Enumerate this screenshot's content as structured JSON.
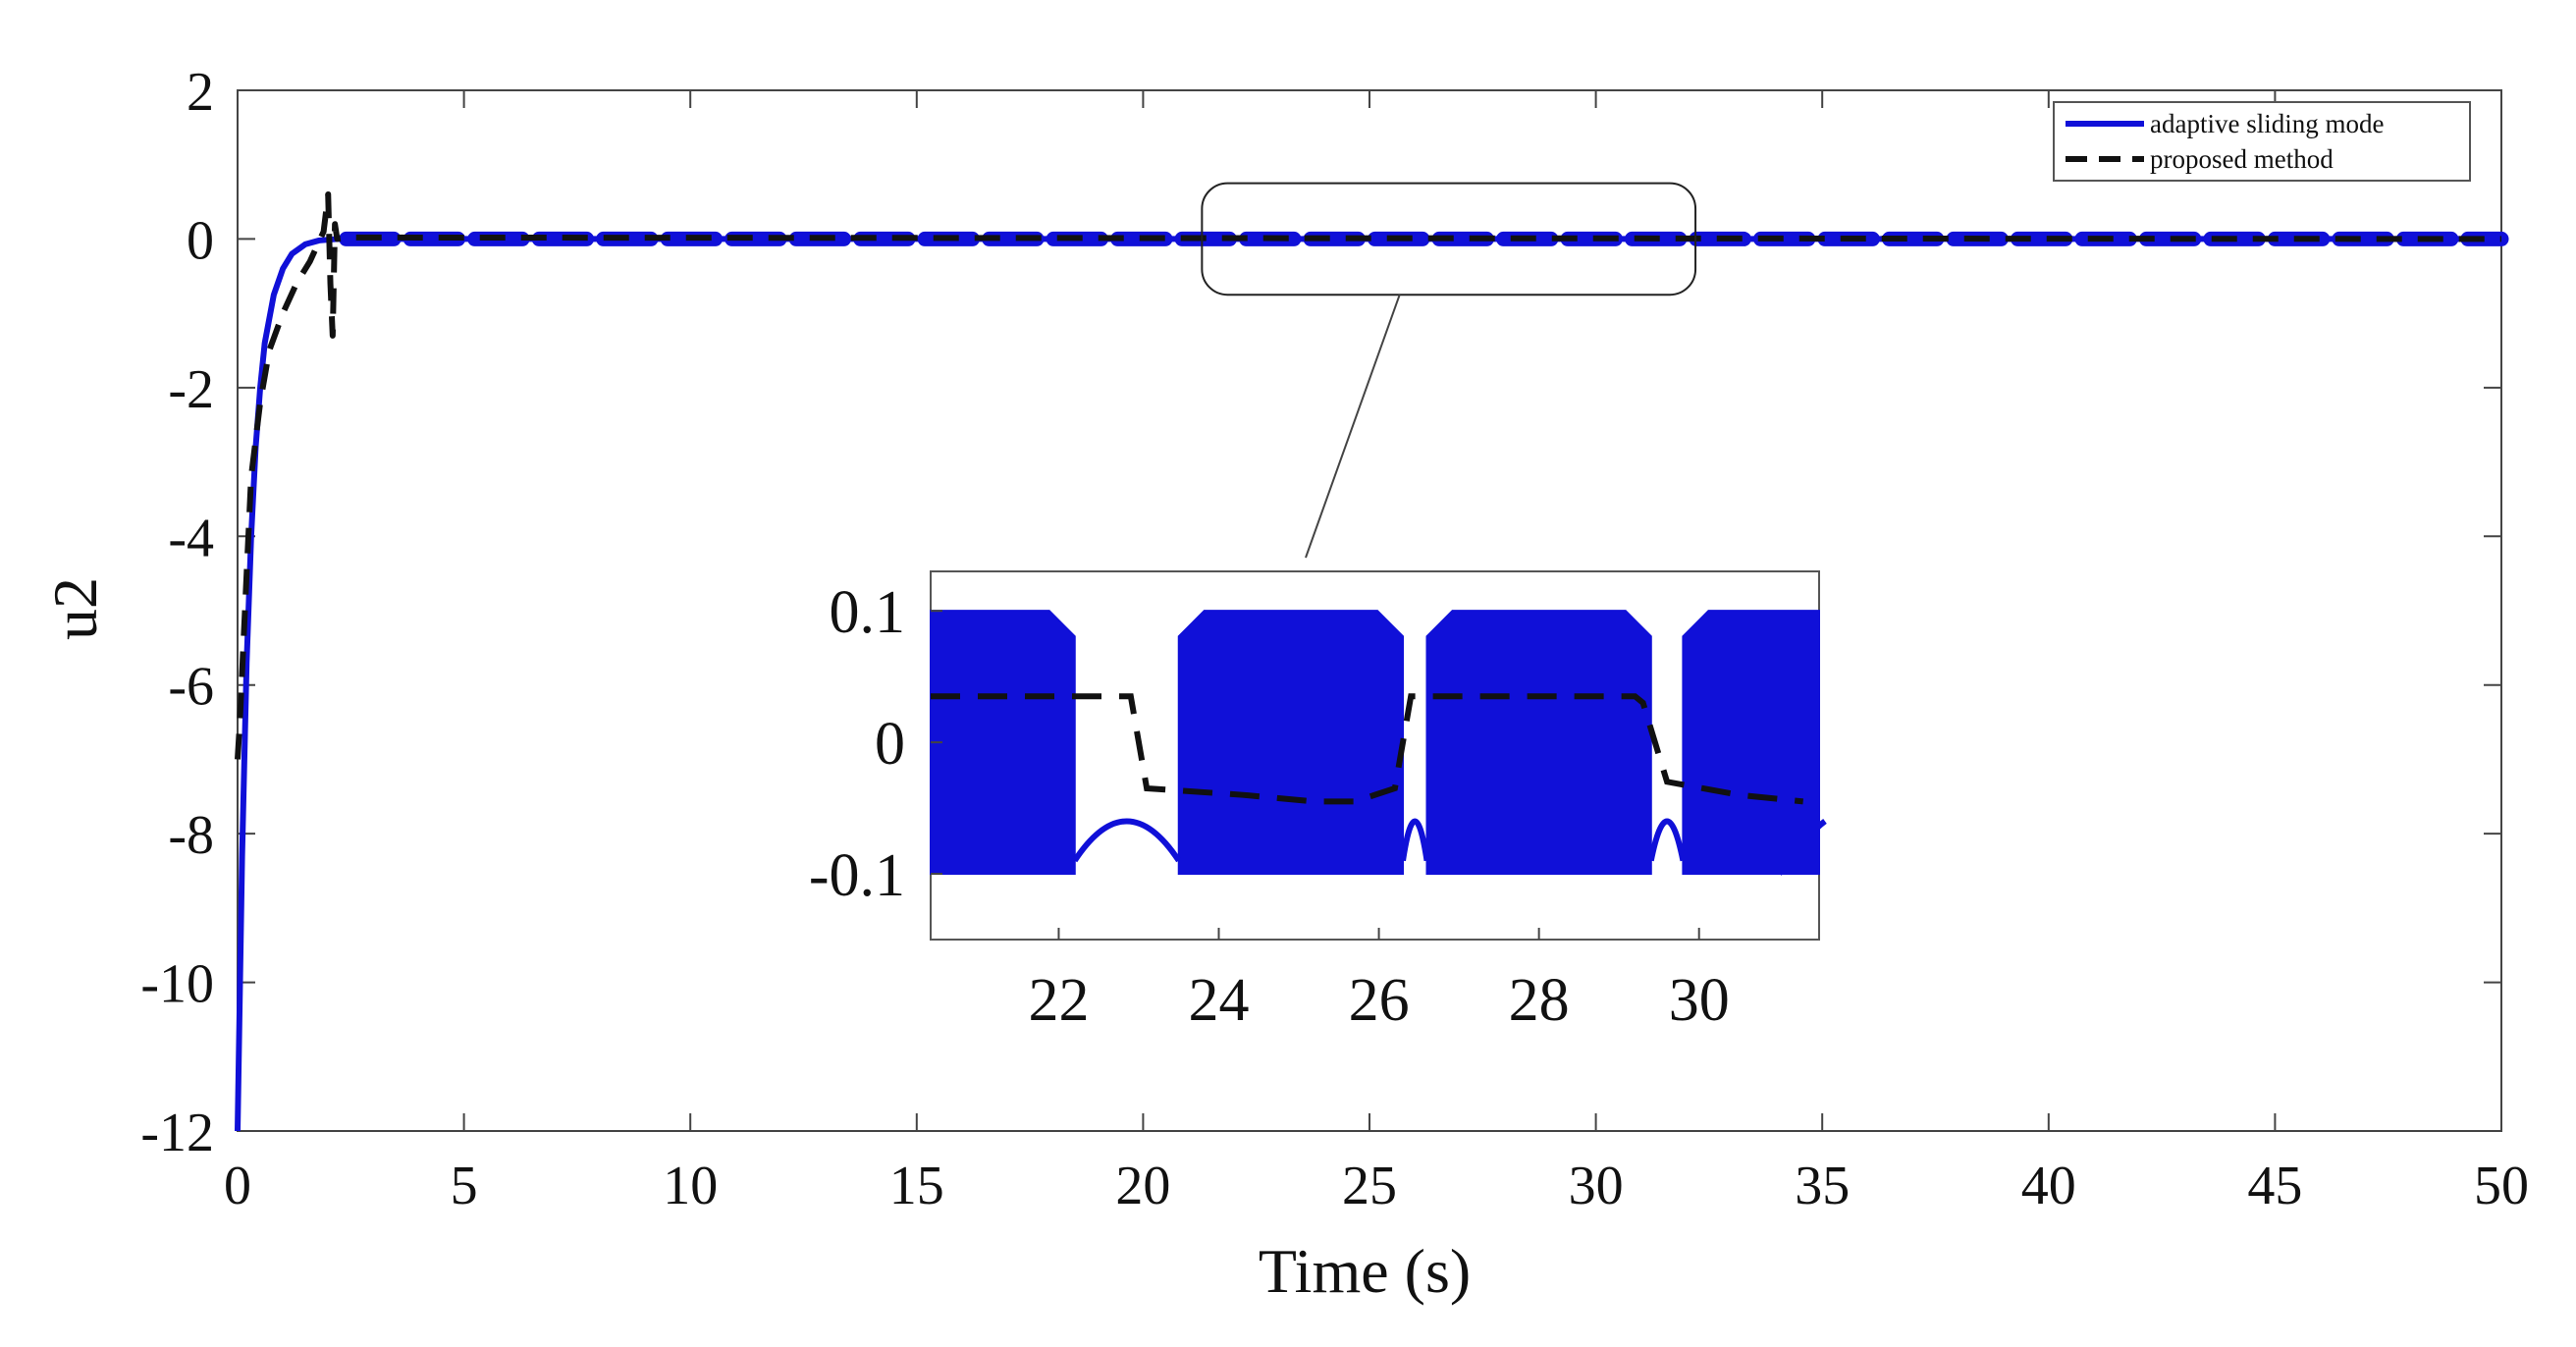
{
  "chart_data": {
    "type": "line",
    "xlabel": "Time (s)",
    "ylabel": "u2",
    "xlim": [
      0,
      50
    ],
    "ylim": [
      -12,
      2
    ],
    "xticks": [
      0,
      5,
      10,
      15,
      20,
      25,
      30,
      35,
      40,
      45,
      50
    ],
    "yticks": [
      2,
      0,
      -2,
      -4,
      -6,
      -8,
      -10,
      -12
    ],
    "grid": false,
    "legend_position": "top-right",
    "series": [
      {
        "name": "adaptive sliding mode",
        "color": "#1010d8",
        "style": "solid",
        "x": [
          0,
          0.1,
          0.2,
          0.3,
          0.4,
          0.5,
          0.6,
          0.8,
          1.0,
          1.2,
          1.5,
          1.8,
          2.2,
          3,
          50
        ],
        "y": [
          -12,
          -8.3,
          -5.7,
          -4.0,
          -2.8,
          -2.0,
          -1.4,
          -0.75,
          -0.4,
          -0.2,
          -0.07,
          -0.02,
          0,
          0,
          0
        ]
      },
      {
        "name": "proposed method",
        "color": "#111111",
        "style": "dashed",
        "x": [
          0,
          0.05,
          0.2,
          0.3,
          0.5,
          0.7,
          1.0,
          1.3,
          1.6,
          1.9,
          2.0,
          2.05,
          2.1,
          2.15,
          2.2,
          2.4,
          3,
          50
        ],
        "y": [
          -7,
          -6.5,
          -4.5,
          -3.2,
          -2.2,
          -1.5,
          -1.0,
          -0.6,
          -0.3,
          0.1,
          0.6,
          -0.6,
          -1.3,
          0.2,
          0,
          0.02,
          0.02,
          0
        ]
      }
    ],
    "inset": {
      "xlim": [
        20.4,
        31.5
      ],
      "ylim": [
        -0.15,
        0.13
      ],
      "xticks": [
        22,
        24,
        26,
        28,
        30
      ],
      "yticks": [
        0.1,
        0,
        -0.1
      ],
      "zoom_window_x": [
        21.3,
        32.2
      ],
      "adaptive_sliding_mode_bands": [
        {
          "x_start": 20.4,
          "x_end": 22.2
        },
        {
          "x_start": 23.5,
          "x_end": 26.3
        },
        {
          "x_start": 26.6,
          "x_end": 29.4
        },
        {
          "x_start": 29.8,
          "x_end": 31.5
        }
      ],
      "proposed_method_steps": {
        "x": [
          20.4,
          22.9,
          23.1,
          24.3,
          25.2,
          25.7,
          26.2,
          26.4,
          29.2,
          29.3,
          29.6,
          30.5,
          31.3
        ],
        "y": [
          0.035,
          0.035,
          -0.035,
          -0.04,
          -0.045,
          -0.045,
          -0.035,
          0.035,
          0.035,
          0.03,
          -0.03,
          -0.04,
          -0.045
        ]
      }
    }
  }
}
